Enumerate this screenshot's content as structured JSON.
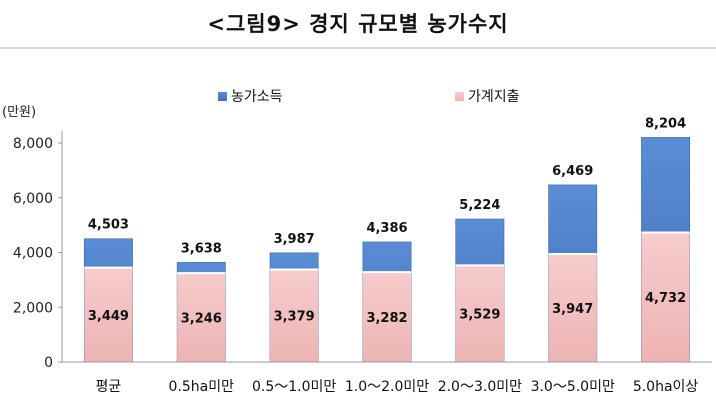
{
  "title": "<그림9> 경지 규모별 농가수지",
  "chart_data": {
    "type": "bar",
    "stacked": false,
    "overlapping": true,
    "unit_label": "(만원)",
    "categories": [
      "평균",
      "0.5ha미만",
      "0.5～1.0미만",
      "1.0～2.0미만",
      "2.0～3.0미만",
      "3.0～5.0미만",
      "5.0ha이상"
    ],
    "series": [
      {
        "name": "농가소득",
        "values": [
          4503,
          3638,
          3987,
          4386,
          5224,
          6469,
          8204
        ],
        "color": "#4a7cc5"
      },
      {
        "name": "가계지출",
        "values": [
          3449,
          3246,
          3379,
          3282,
          3529,
          3947,
          4732
        ],
        "color": "#f0b9b9"
      }
    ],
    "value_labels": {
      "income": [
        "4,503",
        "3,638",
        "3,987",
        "4,386",
        "5,224",
        "6,469",
        "8,204"
      ],
      "expense": [
        "3,449",
        "3,246",
        "3,379",
        "3,282",
        "3,529",
        "3,947",
        "4,732"
      ]
    },
    "y_ticks": [
      0,
      2000,
      4000,
      6000,
      8000
    ],
    "y_tick_labels": [
      "0",
      "2,000",
      "4,000",
      "6,000",
      "8,000"
    ],
    "ylim": [
      0,
      8000
    ],
    "grid": false,
    "legend": "top"
  }
}
